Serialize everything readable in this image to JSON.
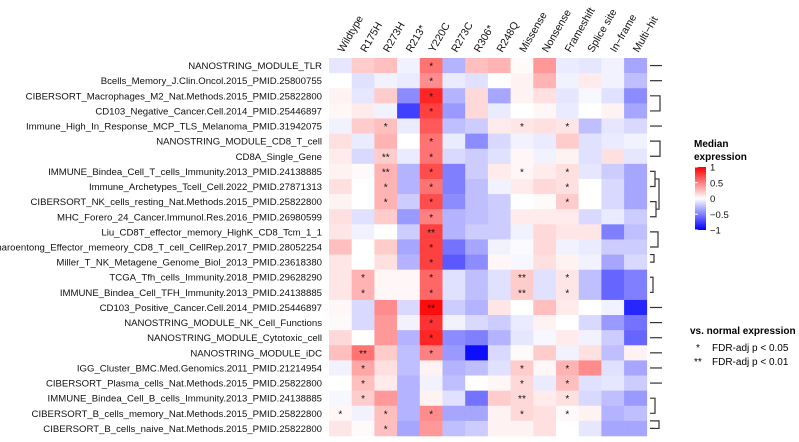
{
  "chart_data": {
    "type": "heatmap",
    "columns": [
      "Wildtype",
      "R175H",
      "R273H",
      "R213*",
      "Y220C",
      "R273C",
      "R306*",
      "R248Q",
      "Missense",
      "Nonsense",
      "Frameshift",
      "Splice site",
      "In−frame",
      "Multi−hit"
    ],
    "rows": [
      "NANOSTRING_MODULE_TLR",
      "Bcells_Memory_J.Clin.Oncol.2015_PMID.25800755",
      "CIBERSORT_Macrophages_M2_Nat.Methods.2015_PMID.25822800",
      "CD103_Negative_Cancer.Cell.2014_PMID.25446897",
      "Immune_High_In_Response_MCP_TLS_Melanoma_PMID.31942075",
      "NANOSTRING_MODULE_CD8_T_cell",
      "CD8A_Single_Gene",
      "IMMUNE_Bindea_Cell_T_cells_Immunity.2013_PMID.24138885",
      "Immune_Archetypes_Tcell_Cell.2022_PMID.27871313",
      "CIBERSORT_NK_cells_resting_Nat.Methods.2015_PMID.25822800",
      "MHC_Forero_24_Cancer.Immunol.Res.2016_PMID.26980599",
      "Liu_CD8T_effector_memory_HighK_CD8_Tcm_1_1",
      "Charoentong_Effector_memeory_CD8_T_cell_CellRep.2017_PMID.28052254",
      "Miller_T_NK_Metagene_Genome_Biol_2013_PMID.23618380",
      "TCGA_Tfh_cells_Immunity.2018_PMID.29628290",
      "IMMUNE_Bindea_Cell_TFH_Immunity.2013_PMID.24138885",
      "CD103_Positive_Cancer.Cell.2014_PMID.25446897",
      "NANOSTRING_MODULE_NK_Cell_Functions",
      "NANOSTRING_MODULE_Cytotoxic_cell",
      "NANOSTRING_MODULE_iDC",
      "IGG_Cluster_BMC.Med.Genomics.2011_PMID.21214954",
      "CIBERSORT_Plasma_cells_Nat.Methods.2015_PMID.25822800",
      "IMMUNE_Bindea_Cell_B_cells_Immunity.2013_PMID.24138885",
      "CIBERSORT_B_cells_memory_Nat.Methods.2015_PMID.25822800",
      "CIBERSORT_B_cells_naive_Nat.Methods.2015_PMID.25822800"
    ],
    "values": [
      [
        -0.1,
        0.2,
        0.25,
        -0.05,
        0.55,
        -0.3,
        0.25,
        0.3,
        0.02,
        0.4,
        -0.08,
        -0.1,
        -0.05,
        -0.35
      ],
      [
        0,
        -0.12,
        -0.05,
        -0.08,
        0.45,
        -0.08,
        -0.12,
        0,
        0.05,
        0.3,
        -0.05,
        0.08,
        -0.05,
        -0.25
      ],
      [
        0.05,
        -0.1,
        0.2,
        -0.45,
        0.85,
        -0.3,
        0.15,
        -0.35,
        0.05,
        0.12,
        -0.1,
        -0.03,
        -0.12,
        -0.45
      ],
      [
        0.03,
        0.08,
        -0.05,
        -0.75,
        0.75,
        -0.4,
        0.15,
        -0.08,
        0,
        0.03,
        -0.08,
        0,
        0.05,
        -0.35
      ],
      [
        -0.05,
        0.2,
        0.25,
        -0.08,
        0.65,
        -0.25,
        -0.2,
        0.08,
        0.1,
        0.12,
        0.1,
        -0.25,
        -0.1,
        -0.15
      ],
      [
        0.12,
        -0.08,
        0.3,
        0,
        0.55,
        -0.08,
        -0.45,
        -0.15,
        -0.05,
        -0.08,
        0.2,
        -0.12,
        -0.08,
        -0.05
      ],
      [
        0.08,
        -0.15,
        0.2,
        -0.08,
        0.55,
        -0.15,
        -0.2,
        -0.12,
        0.03,
        -0.05,
        0.05,
        -0.12,
        0.12,
        -0.1
      ],
      [
        0.05,
        0.02,
        0.3,
        -0.3,
        0.7,
        -0.5,
        -0.2,
        0.08,
        0.03,
        0.08,
        0.12,
        -0.1,
        -0.2,
        -0.35
      ],
      [
        0.12,
        0,
        0.3,
        -0.3,
        0.55,
        -0.5,
        -0.25,
        -0.05,
        0.08,
        0.15,
        0.12,
        0,
        -0.15,
        -0.35
      ],
      [
        0.05,
        0,
        0.3,
        -0.2,
        0.7,
        -0.45,
        -0.25,
        -0.2,
        0,
        0.02,
        0.2,
        0,
        -0.15,
        -0.35
      ],
      [
        0.12,
        -0.12,
        0.2,
        -0.4,
        0.5,
        -0.3,
        -0.25,
        -0.2,
        0.08,
        0.08,
        0.08,
        -0.15,
        -0.08,
        -0.2
      ],
      [
        0.1,
        -0.05,
        0,
        -0.2,
        0.75,
        -0.3,
        -0.2,
        -0.2,
        -0.05,
        0.15,
        0.1,
        0.1,
        -0.5,
        -0.25
      ],
      [
        0.25,
        0,
        0.2,
        -0.35,
        0.75,
        -0.55,
        -0.35,
        -0.05,
        -0.02,
        0.15,
        -0.05,
        -0.08,
        -0.2,
        -0.2
      ],
      [
        0.1,
        0,
        0.12,
        -0.3,
        0.75,
        -0.65,
        -0.45,
        0.03,
        -0.03,
        0.12,
        0.05,
        -0.05,
        -0.35,
        -0.15
      ],
      [
        0.1,
        0.3,
        0.03,
        0.03,
        0.6,
        -0.12,
        -0.25,
        -0.12,
        0.2,
        -0.12,
        0.1,
        -0.25,
        -0.6,
        -0.5
      ],
      [
        0.1,
        0.3,
        0.03,
        0.03,
        0.6,
        -0.12,
        -0.25,
        -0.12,
        0.2,
        -0.12,
        0.1,
        -0.25,
        -0.6,
        -0.5
      ],
      [
        0.03,
        -0.15,
        0.45,
        -0.15,
        0.95,
        -0.2,
        -0.3,
        0.1,
        0,
        0.25,
        0.08,
        0,
        -0.05,
        -0.85
      ],
      [
        0.02,
        -0.15,
        0.4,
        -0.05,
        0.8,
        -0.05,
        -0.15,
        -0.2,
        -0.08,
        0.05,
        0,
        -0.15,
        -0.4,
        -0.55
      ],
      [
        0.15,
        0,
        0.4,
        -0.3,
        0.85,
        -0.45,
        -0.5,
        -0.3,
        -0.1,
        -0.03,
        0.08,
        -0.05,
        -0.2,
        -0.6
      ],
      [
        0.25,
        0.55,
        0.2,
        -0.25,
        0.5,
        -0.4,
        -0.95,
        -0.15,
        0.02,
        0.2,
        -0.05,
        0.12,
        -0.25,
        0.05
      ],
      [
        -0.05,
        0.35,
        0.12,
        -0.25,
        0.05,
        -0.3,
        -0.25,
        -0.12,
        0.2,
        0.03,
        0.3,
        0.45,
        -0.12,
        -0.35
      ],
      [
        0,
        0.25,
        0.08,
        -0.3,
        -0.05,
        -0.25,
        0,
        0.03,
        0.15,
        -0.08,
        0.25,
        -0.12,
        -0.1,
        -0.2
      ],
      [
        -0.03,
        0.2,
        0.4,
        -0.3,
        0.05,
        -0.12,
        -0.55,
        0.2,
        0.15,
        0.08,
        0.12,
        -0.15,
        -0.25,
        -0.4
      ],
      [
        0.03,
        -0.05,
        0.25,
        -0.3,
        0.45,
        -0.35,
        -0.35,
        0.05,
        0.15,
        0.12,
        0.02,
        0.05,
        -0.3,
        -0.25
      ],
      [
        0.1,
        0.02,
        0.25,
        -0.35,
        0.4,
        -0.25,
        -0.2,
        0.05,
        0.05,
        0.12,
        0,
        -0.1,
        -0.35,
        -0.35
      ]
    ],
    "significance": [
      [
        "",
        "",
        "",
        "",
        "*",
        "",
        "",
        "",
        "",
        "",
        "",
        "",
        "",
        ""
      ],
      [
        "",
        "",
        "",
        "",
        "*",
        "",
        "",
        "",
        "",
        "",
        "",
        "",
        "",
        ""
      ],
      [
        "",
        "",
        "",
        "",
        "*",
        "",
        "",
        "",
        "",
        "",
        "",
        "",
        "",
        ""
      ],
      [
        "",
        "",
        "",
        "",
        "*",
        "",
        "",
        "",
        "",
        "",
        "",
        "",
        "",
        ""
      ],
      [
        "",
        "",
        "*",
        "",
        "",
        "",
        "",
        "",
        "*",
        "",
        "*",
        "",
        "",
        ""
      ],
      [
        "",
        "",
        "",
        "",
        "*",
        "",
        "",
        "",
        "",
        "",
        "",
        "",
        "",
        ""
      ],
      [
        "",
        "",
        "**",
        "",
        "*",
        "",
        "",
        "",
        "",
        "",
        "",
        "",
        "",
        ""
      ],
      [
        "",
        "",
        "**",
        "",
        "*",
        "",
        "",
        "",
        "*",
        "",
        "*",
        "",
        "",
        ""
      ],
      [
        "",
        "",
        "*",
        "",
        "*",
        "",
        "",
        "",
        "",
        "",
        "*",
        "",
        "",
        ""
      ],
      [
        "",
        "",
        "*",
        "",
        "*",
        "",
        "",
        "",
        "",
        "",
        "*",
        "",
        "",
        ""
      ],
      [
        "",
        "",
        "",
        "",
        "*",
        "",
        "",
        "",
        "",
        "",
        "",
        "",
        "",
        ""
      ],
      [
        "",
        "",
        "",
        "",
        "**",
        "",
        "",
        "",
        "",
        "",
        "",
        "",
        "",
        ""
      ],
      [
        "",
        "",
        "",
        "",
        "*",
        "",
        "",
        "",
        "",
        "",
        "",
        "",
        "",
        ""
      ],
      [
        "",
        "",
        "",
        "",
        "*",
        "",
        "",
        "",
        "",
        "",
        "",
        "",
        "",
        ""
      ],
      [
        "",
        "*",
        "",
        "",
        "*",
        "",
        "",
        "",
        "**",
        "",
        "*",
        "",
        "",
        ""
      ],
      [
        "",
        "*",
        "",
        "",
        "*",
        "",
        "",
        "",
        "**",
        "",
        "*",
        "",
        "",
        ""
      ],
      [
        "",
        "",
        "",
        "",
        "**",
        "",
        "",
        "",
        "",
        "",
        "",
        "",
        "",
        ""
      ],
      [
        "",
        "",
        "",
        "",
        "*",
        "",
        "",
        "",
        "",
        "",
        "",
        "",
        "",
        ""
      ],
      [
        "",
        "",
        "",
        "",
        "*",
        "",
        "",
        "",
        "",
        "",
        "",
        "",
        "",
        ""
      ],
      [
        "",
        "**",
        "",
        "",
        "*",
        "",
        "",
        "",
        "",
        "",
        "",
        "",
        "",
        ""
      ],
      [
        "",
        "*",
        "",
        "",
        "",
        "",
        "",
        "",
        "*",
        "",
        "*",
        "",
        "",
        ""
      ],
      [
        "",
        "*",
        "",
        "",
        "",
        "",
        "",
        "",
        "*",
        "",
        "*",
        "",
        "",
        ""
      ],
      [
        "",
        "*",
        "",
        "",
        "",
        "",
        "",
        "",
        "**",
        "",
        "*",
        "",
        "",
        ""
      ],
      [
        "*",
        "",
        "*",
        "",
        "*",
        "",
        "",
        "",
        "*",
        "",
        "*",
        "",
        "",
        ""
      ],
      [
        "",
        "",
        "*",
        "",
        "",
        "",
        "",
        "",
        "",
        "",
        "",
        "",
        "",
        ""
      ]
    ],
    "color_scale": {
      "min": -1,
      "max": 1,
      "low": "#0000FF",
      "mid": "#FFFFFF",
      "high": "#FF0000"
    },
    "legend": {
      "title_line1": "Median",
      "title_line2": "expression",
      "ticks": [
        "1",
        "0.5",
        "0",
        "−0.5",
        "−1"
      ],
      "tick_values": [
        1,
        0.5,
        0,
        -0.5,
        -1
      ],
      "placement": "right"
    },
    "significance_legend": {
      "title": "vs. normal expression",
      "items": [
        {
          "symbol": "*",
          "label": "FDR-adj p < 0.05"
        },
        {
          "symbol": "**",
          "label": "FDR-adj p < 0.01"
        }
      ]
    }
  }
}
